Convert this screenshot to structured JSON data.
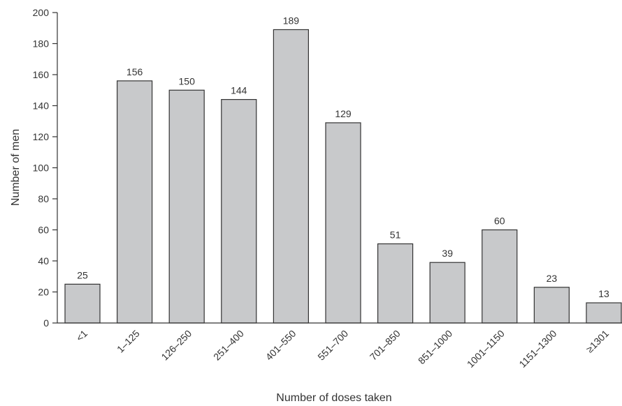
{
  "chart_data": {
    "type": "bar",
    "categories": [
      "<1",
      "1–125",
      "126–250",
      "251–400",
      "401–550",
      "551–700",
      "701–850",
      "851–1000",
      "1001–1150",
      "1151–1300",
      "≥1301"
    ],
    "values": [
      25,
      156,
      150,
      144,
      189,
      129,
      51,
      39,
      60,
      23,
      13
    ],
    "data_labels": [
      "25",
      "156",
      "150",
      "144",
      "189",
      "129",
      "51",
      "39",
      "60",
      "23",
      "13"
    ],
    "title": "",
    "xlabel": "Number of doses taken",
    "ylabel": "Number of men",
    "ylim": [
      0,
      200
    ],
    "yticks": [
      0,
      20,
      40,
      60,
      80,
      100,
      120,
      140,
      160,
      180,
      200
    ],
    "ytick_labels": [
      "0",
      "20",
      "40",
      "60",
      "80",
      "100",
      "120",
      "140",
      "160",
      "180",
      "200"
    ],
    "grid": false,
    "legend": "none",
    "colors": {
      "bar_fill": "#c8c9cb",
      "bar_stroke": "#333333",
      "text": "#333333"
    }
  }
}
